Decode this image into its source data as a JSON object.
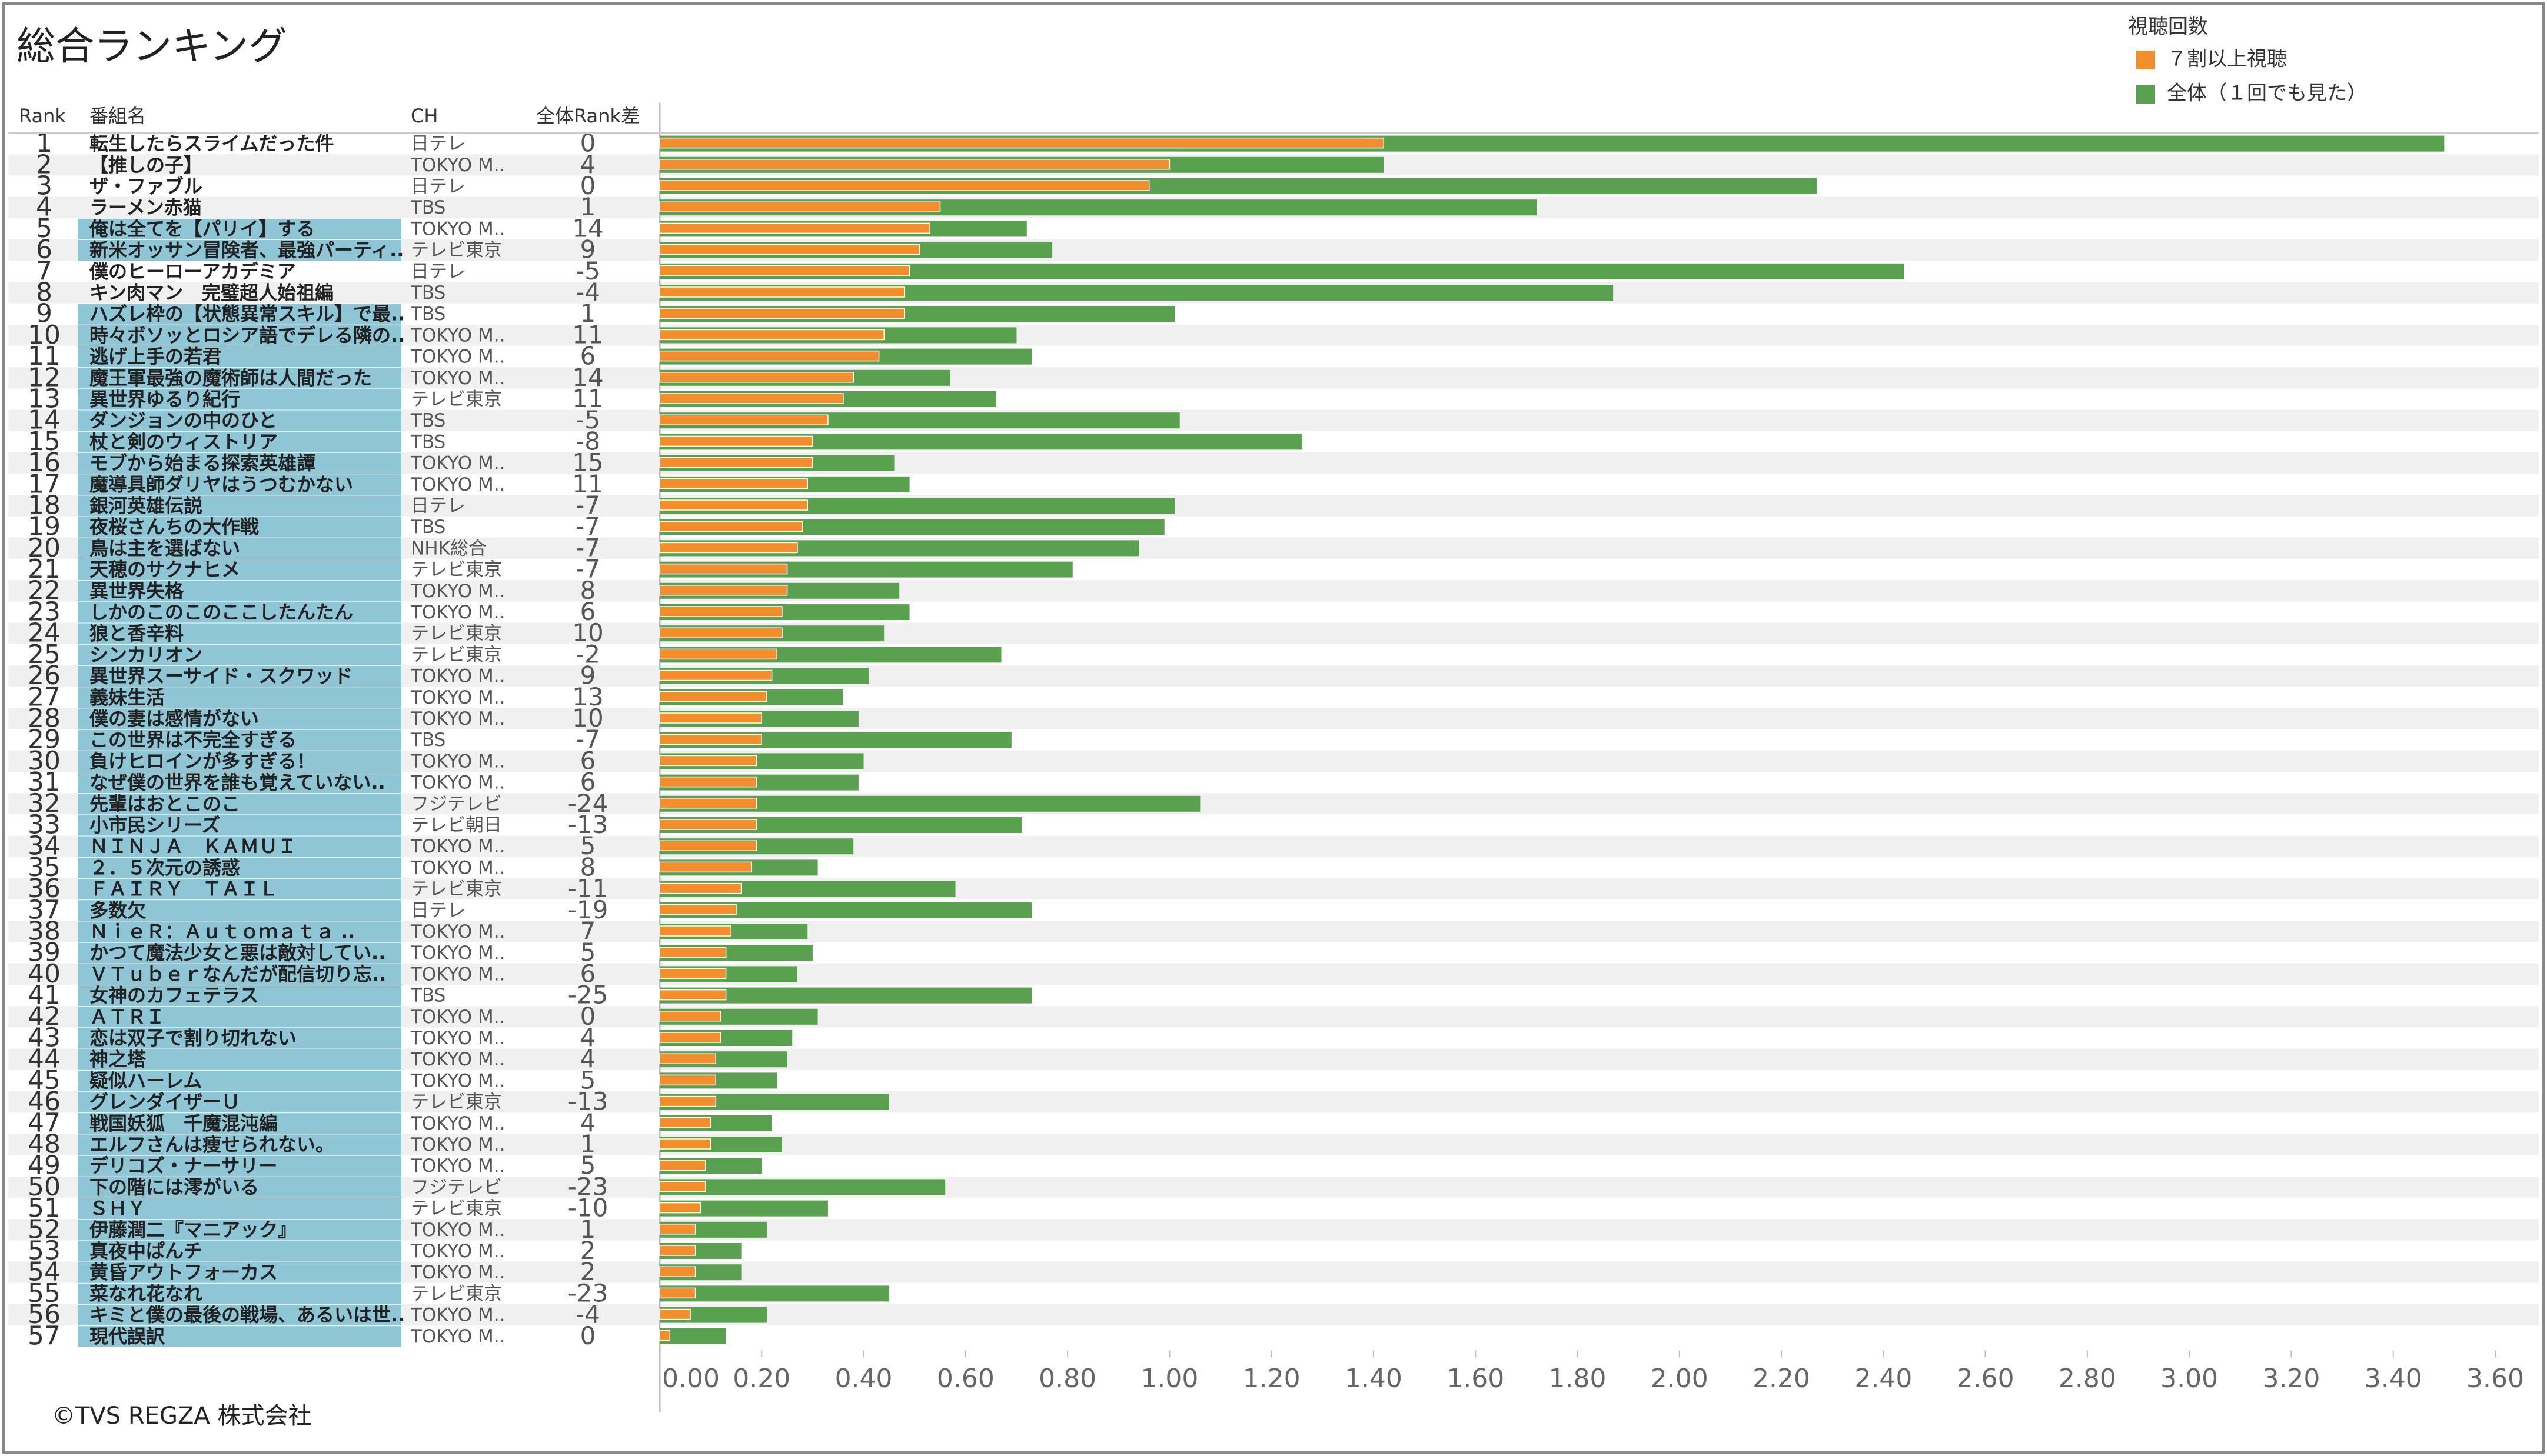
{
  "header": {
    "title": "総合ランキング",
    "legend_title": "視聴回数"
  },
  "table": {
    "columns": [
      "Rank",
      "番組名",
      "CH",
      "全体Rank差"
    ],
    "highlight_color": "#8ec6d6",
    "rows": [
      [
        1,
        "転生したらスライムだった件",
        "日テレ",
        0
      ],
      [
        2,
        "【推しの子】",
        "TOKYO M..",
        4
      ],
      [
        3,
        "ザ・ファブル",
        "日テレ",
        0
      ],
      [
        4,
        "ラーメン赤猫",
        "TBS",
        1
      ],
      [
        5,
        "俺は全てを【パリイ】する",
        "TOKYO M..",
        14
      ],
      [
        6,
        "新米オッサン冒険者、最強パーティ..",
        "テレビ東京",
        9
      ],
      [
        7,
        "僕のヒーローアカデミア",
        "日テレ",
        -5
      ],
      [
        8,
        "キン肉マン　完璧超人始祖編",
        "TBS",
        -4
      ],
      [
        9,
        "ハズレ枠の【状態異常スキル】で最..",
        "TBS",
        1
      ],
      [
        10,
        "時々ボソッとロシア語でデレる隣の..",
        "TOKYO M..",
        11
      ],
      [
        11,
        "逃げ上手の若君",
        "TOKYO M..",
        6
      ],
      [
        12,
        "魔王軍最強の魔術師は人間だった",
        "TOKYO M..",
        14
      ],
      [
        13,
        "異世界ゆるり紀行",
        "テレビ東京",
        11
      ],
      [
        14,
        "ダンジョンの中のひと",
        "TBS",
        -5
      ],
      [
        15,
        "杖と剣のウィストリア",
        "TBS",
        -8
      ],
      [
        16,
        "モブから始まる探索英雄譚",
        "TOKYO M..",
        15
      ],
      [
        17,
        "魔導具師ダリヤはうつむかない",
        "TOKYO M..",
        11
      ],
      [
        18,
        "銀河英雄伝説",
        "日テレ",
        -7
      ],
      [
        19,
        "夜桜さんちの大作戦",
        "TBS",
        -7
      ],
      [
        20,
        "鳥は主を選ばない",
        "NHK総合",
        -7
      ],
      [
        21,
        "天穂のサクナヒメ",
        "テレビ東京",
        -7
      ],
      [
        22,
        "異世界失格",
        "TOKYO M..",
        8
      ],
      [
        23,
        "しかのこのこのここしたんたん",
        "TOKYO M..",
        6
      ],
      [
        24,
        "狼と香辛料",
        "テレビ東京",
        10
      ],
      [
        25,
        "シンカリオン",
        "テレビ東京",
        -2
      ],
      [
        26,
        "異世界スーサイド・スクワッド",
        "TOKYO M..",
        9
      ],
      [
        27,
        "義妹生活",
        "TOKYO M..",
        13
      ],
      [
        28,
        "僕の妻は感情がない",
        "TOKYO M..",
        10
      ],
      [
        29,
        "この世界は不完全すぎる",
        "TBS",
        -7
      ],
      [
        30,
        "負けヒロインが多すぎる！",
        "TOKYO M..",
        6
      ],
      [
        31,
        "なぜ僕の世界を誰も覚えていない..",
        "TOKYO M..",
        6
      ],
      [
        32,
        "先輩はおとこのこ",
        "フジテレビ",
        -24
      ],
      [
        33,
        "小市民シリーズ",
        "テレビ朝日",
        -13
      ],
      [
        34,
        "ＮＩＮＪＡ　ＫＡＭＵＩ",
        "TOKYO M..",
        5
      ],
      [
        35,
        "２．５次元の誘惑",
        "TOKYO M..",
        8
      ],
      [
        36,
        "ＦＡＩＲＹ　ＴＡＩＬ",
        "テレビ東京",
        -11
      ],
      [
        37,
        "多数欠",
        "日テレ",
        -19
      ],
      [
        38,
        "ＮｉｅＲ：Ａｕｔｏｍａｔａ ..",
        "TOKYO M..",
        7
      ],
      [
        39,
        "かつて魔法少女と悪は敵対してい..",
        "TOKYO M..",
        5
      ],
      [
        40,
        "ＶＴｕｂｅｒなんだが配信切り忘..",
        "TOKYO M..",
        6
      ],
      [
        41,
        "女神のカフェテラス",
        "TBS",
        -25
      ],
      [
        42,
        "ＡＴＲＩ",
        "TOKYO M..",
        0
      ],
      [
        43,
        "恋は双子で割り切れない",
        "TOKYO M..",
        4
      ],
      [
        44,
        "神之塔",
        "TOKYO M..",
        4
      ],
      [
        45,
        "疑似ハーレム",
        "TOKYO M..",
        5
      ],
      [
        46,
        "グレンダイザーＵ",
        "テレビ東京",
        -13
      ],
      [
        47,
        "戦国妖狐　千魔混沌編",
        "TOKYO M..",
        4
      ],
      [
        48,
        "エルフさんは痩せられない。",
        "TOKYO M..",
        1
      ],
      [
        49,
        "デリコズ・ナーサリー",
        "TOKYO M..",
        5
      ],
      [
        50,
        "下の階には澪がいる",
        "フジテレビ",
        -23
      ],
      [
        51,
        "ＳＨＹ",
        "テレビ東京",
        -10
      ],
      [
        52,
        "伊藤潤二『マニアック』",
        "TOKYO M..",
        1
      ],
      [
        53,
        "真夜中ぱんチ",
        "TOKYO M..",
        2
      ],
      [
        54,
        "黄昏アウトフォーカス",
        "TOKYO M..",
        2
      ],
      [
        55,
        "菜なれ花なれ",
        "テレビ東京",
        -23
      ],
      [
        56,
        "キミと僕の最後の戦場、あるいは世..",
        "TOKYO M..",
        -4
      ],
      [
        57,
        "現代誤訳",
        "TOKYO M..",
        0
      ]
    ],
    "highlight": [
      false,
      false,
      false,
      false,
      true,
      true,
      false,
      false,
      true,
      true,
      true,
      true,
      true,
      true,
      true,
      true,
      true,
      true,
      true,
      true,
      true,
      true,
      true,
      true,
      true,
      true,
      true,
      true,
      true,
      true,
      true,
      true,
      true,
      true,
      true,
      true,
      true,
      true,
      true,
      true,
      true,
      true,
      true,
      true,
      true,
      true,
      true,
      true,
      true,
      true,
      true,
      true,
      true,
      true,
      true,
      true,
      true
    ]
  },
  "chart_data": {
    "type": "bar",
    "orientation": "horizontal",
    "grid": false,
    "series": [
      {
        "name": "７割以上視聴",
        "color": "#f28e2b",
        "values": [
          1.42,
          1.0,
          0.96,
          0.55,
          0.53,
          0.51,
          0.49,
          0.48,
          0.48,
          0.44,
          0.43,
          0.38,
          0.36,
          0.33,
          0.3,
          0.3,
          0.29,
          0.29,
          0.28,
          0.27,
          0.25,
          0.25,
          0.24,
          0.24,
          0.23,
          0.22,
          0.21,
          0.2,
          0.2,
          0.19,
          0.19,
          0.19,
          0.19,
          0.19,
          0.18,
          0.16,
          0.15,
          0.14,
          0.13,
          0.13,
          0.13,
          0.12,
          0.12,
          0.11,
          0.11,
          0.11,
          0.1,
          0.1,
          0.09,
          0.09,
          0.08,
          0.07,
          0.07,
          0.07,
          0.07,
          0.06,
          0.02
        ]
      },
      {
        "name": "全体（１回でも見た）",
        "color": "#59a14f",
        "values": [
          3.5,
          1.42,
          2.27,
          1.72,
          0.72,
          0.77,
          2.44,
          1.87,
          1.01,
          0.7,
          0.73,
          0.57,
          0.66,
          1.02,
          1.26,
          0.46,
          0.49,
          1.01,
          0.99,
          0.94,
          0.81,
          0.47,
          0.49,
          0.44,
          0.67,
          0.41,
          0.36,
          0.39,
          0.69,
          0.4,
          0.39,
          1.06,
          0.71,
          0.38,
          0.31,
          0.58,
          0.73,
          0.29,
          0.3,
          0.27,
          0.73,
          0.31,
          0.26,
          0.25,
          0.23,
          0.45,
          0.22,
          0.24,
          0.2,
          0.56,
          0.33,
          0.21,
          0.16,
          0.16,
          0.45,
          0.21,
          0.13
        ]
      }
    ],
    "xlim": [
      0,
      3.6
    ],
    "xticks": [
      {
        "value": 0,
        "label": "0.00"
      },
      {
        "value": 0.2,
        "label": "0.20"
      },
      {
        "value": 0.4,
        "label": "0.40"
      },
      {
        "value": 0.6,
        "label": "0.60"
      },
      {
        "value": 0.8,
        "label": "0.80"
      },
      {
        "value": 1,
        "label": "1.00"
      },
      {
        "value": 1.2,
        "label": "1.20"
      },
      {
        "value": 1.4,
        "label": "1.40"
      },
      {
        "value": 1.6,
        "label": "1.60"
      },
      {
        "value": 1.8,
        "label": "1.80"
      },
      {
        "value": 2,
        "label": "2.00"
      },
      {
        "value": 2.2,
        "label": "2.20"
      },
      {
        "value": 2.4,
        "label": "2.40"
      },
      {
        "value": 2.6,
        "label": "2.60"
      },
      {
        "value": 2.8,
        "label": "2.80"
      },
      {
        "value": 3,
        "label": "3.00"
      },
      {
        "value": 3.2,
        "label": "3.20"
      },
      {
        "value": 3.4,
        "label": "3.40"
      },
      {
        "value": 3.6,
        "label": "3.60"
      }
    ]
  },
  "footer": "©TVS REGZA 株式会社"
}
